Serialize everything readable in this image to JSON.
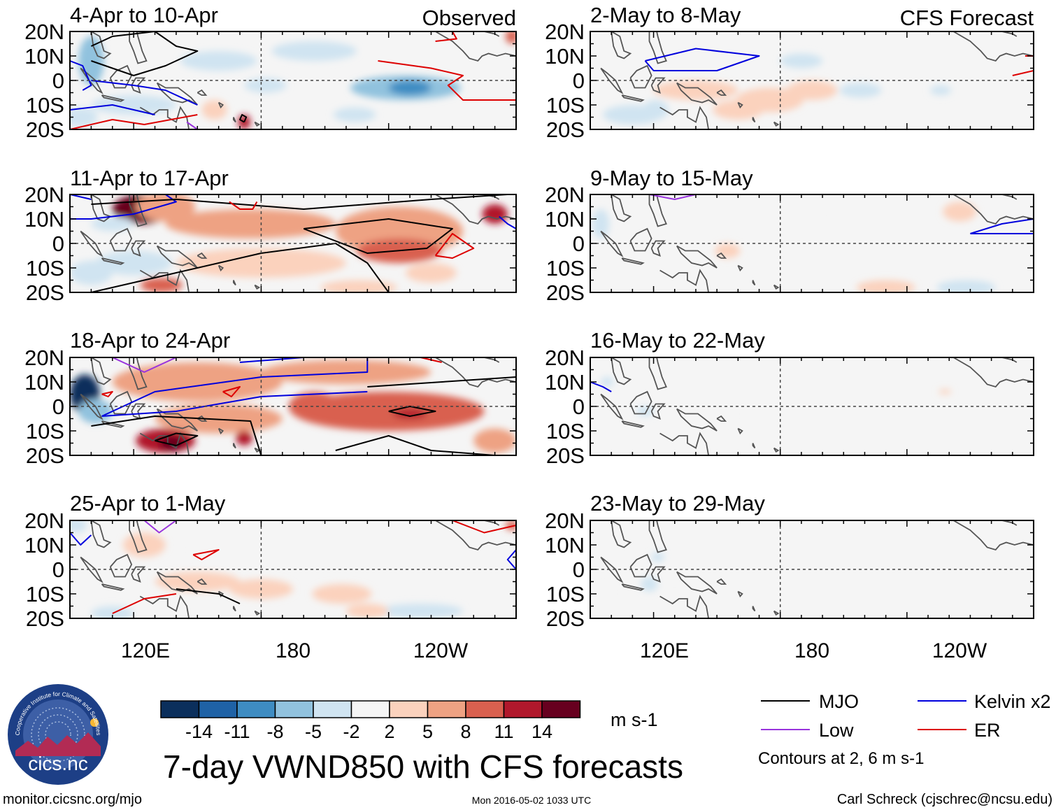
{
  "chart_data": {
    "type": "heatmap",
    "title": "7-day VWND850 with CFS forecasts",
    "variable": "VWND850",
    "units": "m s-1",
    "lat_ticks": [
      "20N",
      "10N",
      "0",
      "10S",
      "20S"
    ],
    "lon_ticks": [
      "120E",
      "180",
      "120W"
    ],
    "colorbar": {
      "ticks": [
        "-14",
        "-11",
        "-8",
        "-5",
        "-2",
        "2",
        "5",
        "8",
        "11",
        "14"
      ],
      "colors": [
        "#0b2f5c",
        "#1f62a6",
        "#3e8cc2",
        "#91c2de",
        "#d0e4f1",
        "#f5f5f5",
        "#fbd2bd",
        "#eea283",
        "#d9604f",
        "#b1182c",
        "#67001f"
      ]
    },
    "columns": {
      "left": "Observed",
      "right": "CFS Forecast"
    },
    "panels": [
      {
        "id": "p1",
        "title": "4-Apr to 10-Apr",
        "source": "observed",
        "label": "Observed"
      },
      {
        "id": "p2",
        "title": "11-Apr to 17-Apr",
        "source": "observed"
      },
      {
        "id": "p3",
        "title": "18-Apr to 24-Apr",
        "source": "observed"
      },
      {
        "id": "p4",
        "title": "25-Apr to 1-May",
        "source": "observed"
      },
      {
        "id": "p5",
        "title": "2-May to 8-May",
        "source": "forecast",
        "label": "CFS Forecast"
      },
      {
        "id": "p6",
        "title": "9-May to 15-May",
        "source": "forecast"
      },
      {
        "id": "p7",
        "title": "16-May to 22-May",
        "source": "forecast"
      },
      {
        "id": "p8",
        "title": "23-May to 29-May",
        "source": "forecast"
      }
    ],
    "legend": [
      {
        "name": "MJO",
        "color": "#000000"
      },
      {
        "name": "Kelvin x2",
        "color": "#0000dd"
      },
      {
        "name": "Low",
        "color": "#9933dd"
      },
      {
        "name": "ER",
        "color": "#dd0000"
      }
    ],
    "contour_note": "Contours at 2, 6 m s-1"
  },
  "footer": {
    "url": "monitor.cicsnc.org/mjo",
    "timestamp": "Mon 2016-05-02 1033 UTC",
    "author": "Carl Schreck (cjschrec@ncsu.edu)"
  },
  "logo": {
    "text": "cics.nc",
    "ring_text": "Cooperative Institute for Climate and Satellites"
  }
}
